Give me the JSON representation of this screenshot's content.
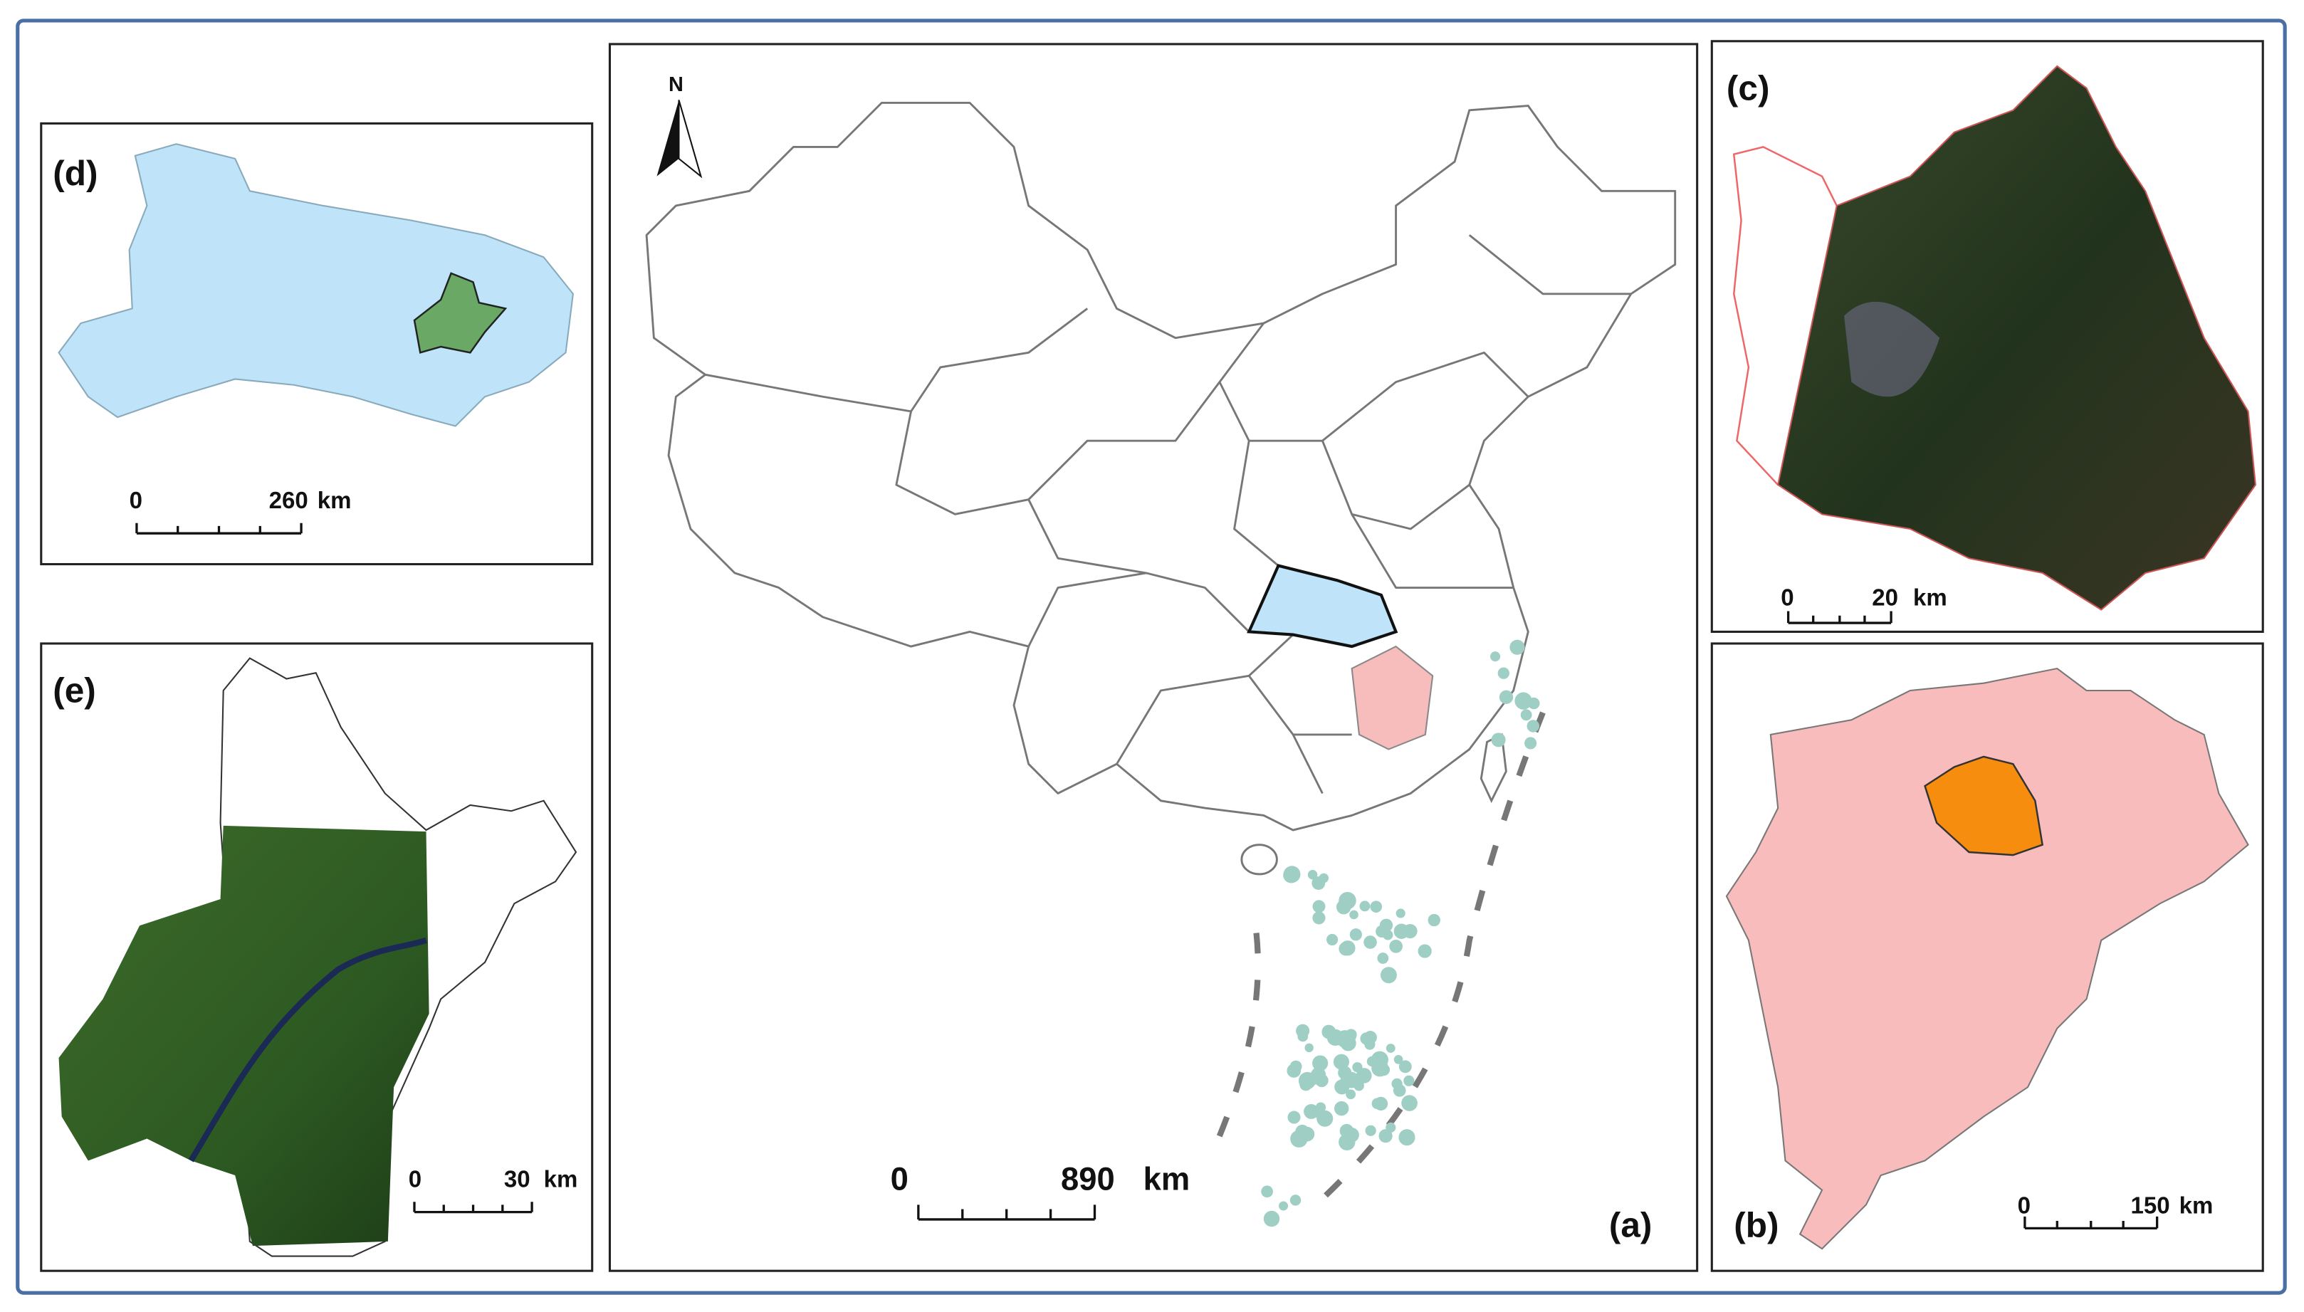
{
  "panels": {
    "a": {
      "label": "(a)",
      "north": "N",
      "scale": {
        "start": "0",
        "end": "890",
        "unit": "km"
      }
    },
    "b": {
      "label": "(b)",
      "scale": {
        "start": "0",
        "end": "150",
        "unit": "km"
      }
    },
    "c": {
      "label": "(c)",
      "scale": {
        "start": "0",
        "end": "20",
        "unit": "km"
      }
    },
    "d": {
      "label": "(d)",
      "scale": {
        "start": "0",
        "end": "260",
        "unit": "km"
      }
    },
    "e": {
      "label": "(e)",
      "scale": {
        "start": "0",
        "end": "30",
        "unit": "km"
      }
    }
  }
}
